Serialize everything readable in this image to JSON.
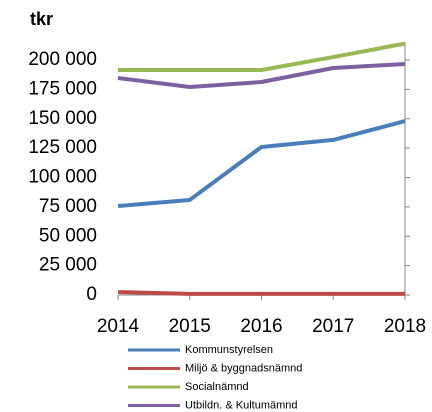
{
  "chart_data": {
    "type": "line",
    "title": "tkr",
    "categories": [
      "2014",
      "2015",
      "2016",
      "2017",
      "2018"
    ],
    "series": [
      {
        "name": "Kommunstyrelsen",
        "color": "#4a7ebb",
        "values": [
          75700,
          80900,
          126000,
          132000,
          148000
        ]
      },
      {
        "name": "Miljö & byggnadsnämnd",
        "color": "#be4b48",
        "values": [
          2500,
          1000,
          1000,
          1000,
          1000
        ]
      },
      {
        "name": "Socialnämnd",
        "color": "#98b954",
        "values": [
          191500,
          191500,
          191500,
          202500,
          214000
        ]
      },
      {
        "name": "Utbildn. & Kultumämnd",
        "color": "#7d60a0",
        "values": [
          184700,
          177000,
          181300,
          193200,
          196600
        ]
      }
    ],
    "ylim": [
      0,
      215000
    ],
    "yticks": [
      0,
      {
        "value": 25000,
        "label": "25 000"
      },
      {
        "value": 50000,
        "label": "50 000"
      },
      {
        "value": 75000,
        "label": "75 000"
      },
      {
        "value": 100000,
        "label": "100 000"
      },
      {
        "value": 125000,
        "label": "125 000"
      },
      {
        "value": 150000,
        "label": "150 000"
      },
      {
        "value": 175000,
        "label": "175 000"
      },
      {
        "value": 200000,
        "label": "200 000"
      }
    ]
  }
}
